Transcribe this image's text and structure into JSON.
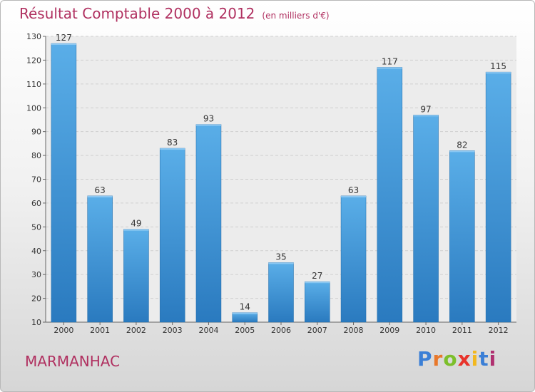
{
  "chart_data": {
    "type": "bar",
    "title": "Résultat Comptable 2000 à 2012",
    "subtitle": "(en milliers d'€)",
    "categories": [
      "2000",
      "2001",
      "2002",
      "2003",
      "2004",
      "2005",
      "2006",
      "2007",
      "2008",
      "2009",
      "2010",
      "2011",
      "2012"
    ],
    "values": [
      127,
      63,
      49,
      83,
      93,
      14,
      35,
      27,
      63,
      117,
      97,
      82,
      115
    ],
    "ylim": [
      10,
      130
    ],
    "yticks": [
      10,
      20,
      30,
      40,
      50,
      60,
      70,
      80,
      90,
      100,
      110,
      120,
      130
    ],
    "xlabel": "",
    "ylabel": "",
    "grid": true,
    "bar_color": "#4f9fdd"
  },
  "commune": "MARMANHAC",
  "logo": {
    "letters": [
      "P",
      "r",
      "o",
      "x",
      "i",
      "t",
      "i"
    ],
    "colors": [
      "#3b7fd6",
      "#e8782b",
      "#7cbf2b",
      "#e8332b",
      "#f2b81e",
      "#3b7fd6",
      "#b03070"
    ]
  }
}
